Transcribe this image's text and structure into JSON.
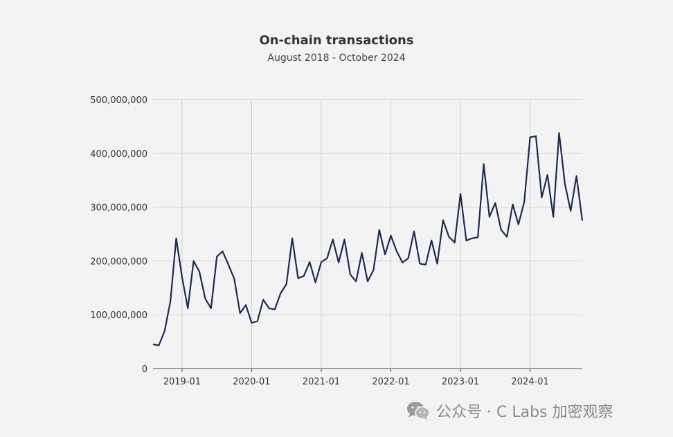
{
  "chart_data": {
    "type": "line",
    "title": "On-chain transactions",
    "subtitle": "August 2018 - October 2024",
    "xlabel": "",
    "ylabel": "",
    "x_range": [
      "2018-08",
      "2024-10"
    ],
    "ylim": [
      0,
      500000000
    ],
    "y_ticks": [
      "0",
      "100,000,000",
      "200,000,000",
      "300,000,000",
      "400,000,000",
      "500,000,000"
    ],
    "x_ticks": [
      "2019-01",
      "2020-01",
      "2021-01",
      "2022-01",
      "2023-01",
      "2024-01"
    ],
    "grid": true,
    "legend": "none",
    "series": [
      {
        "color": "#1c2a52",
        "x": [
          "2018-08",
          "2018-09",
          "2018-10",
          "2018-11",
          "2018-12",
          "2019-01",
          "2019-02",
          "2019-03",
          "2019-04",
          "2019-05",
          "2019-06",
          "2019-07",
          "2019-08",
          "2019-09",
          "2019-10",
          "2019-11",
          "2019-12",
          "2020-01",
          "2020-02",
          "2020-03",
          "2020-04",
          "2020-05",
          "2020-06",
          "2020-07",
          "2020-08",
          "2020-09",
          "2020-10",
          "2020-11",
          "2020-12",
          "2021-01",
          "2021-02",
          "2021-03",
          "2021-04",
          "2021-05",
          "2021-06",
          "2021-07",
          "2021-08",
          "2021-09",
          "2021-10",
          "2021-11",
          "2021-12",
          "2022-01",
          "2022-02",
          "2022-03",
          "2022-04",
          "2022-05",
          "2022-06",
          "2022-07",
          "2022-08",
          "2022-09",
          "2022-10",
          "2022-11",
          "2022-12",
          "2023-01",
          "2023-02",
          "2023-03",
          "2023-04",
          "2023-05",
          "2023-06",
          "2023-07",
          "2023-08",
          "2023-09",
          "2023-10",
          "2023-11",
          "2023-12",
          "2024-01",
          "2024-02",
          "2024-03",
          "2024-04",
          "2024-05",
          "2024-06",
          "2024-07",
          "2024-08",
          "2024-09",
          "2024-10"
        ],
        "y": [
          45000000,
          43000000,
          70000000,
          125000000,
          242000000,
          170000000,
          112000000,
          200000000,
          180000000,
          130000000,
          112000000,
          208000000,
          218000000,
          193000000,
          167000000,
          103000000,
          118000000,
          85000000,
          88000000,
          128000000,
          112000000,
          110000000,
          140000000,
          157000000,
          242000000,
          168000000,
          172000000,
          198000000,
          160000000,
          198000000,
          205000000,
          240000000,
          197000000,
          240000000,
          175000000,
          162000000,
          215000000,
          162000000,
          183000000,
          258000000,
          212000000,
          247000000,
          218000000,
          197000000,
          205000000,
          255000000,
          195000000,
          193000000,
          238000000,
          195000000,
          276000000,
          245000000,
          234000000,
          325000000,
          238000000,
          242000000,
          244000000,
          380000000,
          282000000,
          308000000,
          258000000,
          245000000,
          305000000,
          268000000,
          310000000,
          430000000,
          432000000,
          318000000,
          360000000,
          282000000,
          438000000,
          343000000,
          293000000,
          358000000,
          275000000
        ]
      }
    ]
  },
  "watermark": {
    "icon": "wechat-icon",
    "text": "公众号 · C Labs 加密观察"
  }
}
